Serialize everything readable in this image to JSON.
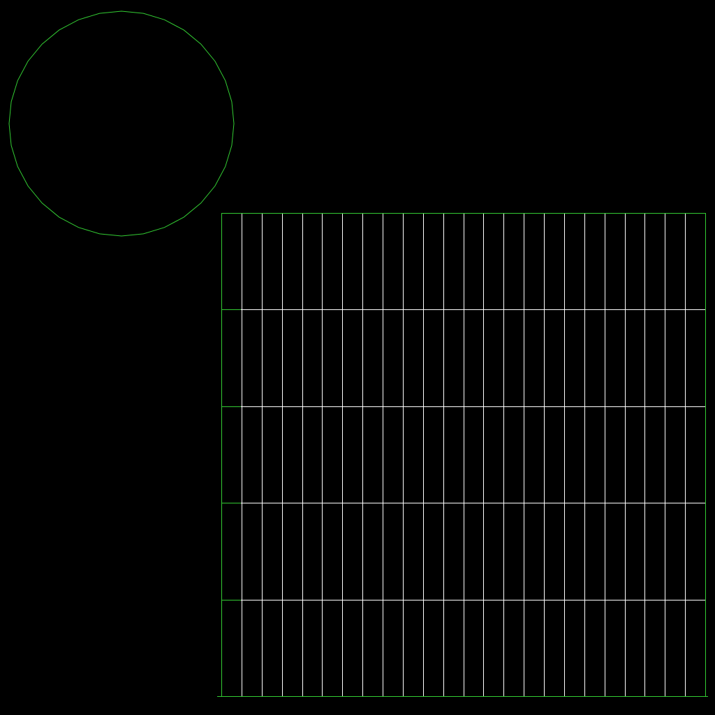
{
  "scene": {
    "background_color": "#000000",
    "outline_color": "#33cc33",
    "grid_line_color": "#ffffff",
    "circle": {
      "shape": "polygon-approximated circle",
      "segments": 32
    },
    "grid": {
      "columns": 24,
      "rows": 5
    }
  }
}
